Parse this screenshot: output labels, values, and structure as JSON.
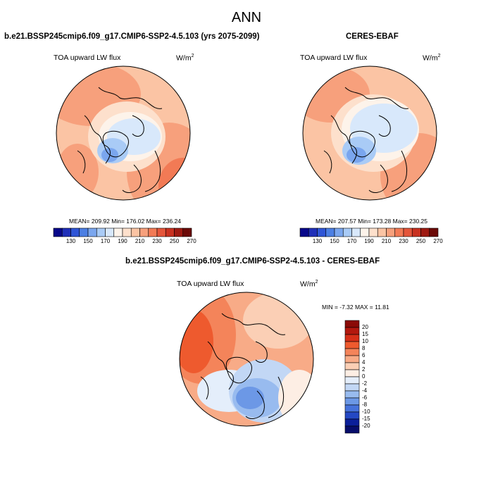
{
  "page": {
    "title": "ANN"
  },
  "panels": [
    {
      "id": "test",
      "case_title": "b.e21.BSSP245cmip6.f09_g17.CMIP6-SSP2-4.5.103 (yrs 2075-2099)",
      "variable": "TOA upward LW flux",
      "units_base": "W/m",
      "units_exp": "2",
      "stats": "MEAN= 209.92  Min= 176.02  Max= 236.24",
      "palette": "abs",
      "colorbar_labels": [
        "130",
        "150",
        "170",
        "190",
        "210",
        "230",
        "250",
        "270"
      ]
    },
    {
      "id": "ref",
      "case_title": "CERES-EBAF",
      "variable": "TOA upward LW flux",
      "units_base": "W/m",
      "units_exp": "2",
      "stats": "MEAN= 207.57  Min= 173.28  Max= 230.25",
      "palette": "abs",
      "colorbar_labels": [
        "130",
        "150",
        "170",
        "190",
        "210",
        "230",
        "250",
        "270"
      ]
    },
    {
      "id": "diff",
      "case_title": "b.e21.BSSP245cmip6.f09_g17.CMIP6-SSP2-4.5.103 - CERES-EBAF",
      "variable": "TOA upward LW flux",
      "units_base": "W/m",
      "units_exp": "2",
      "stats": "MIN = -7.32 MAX = 11.81",
      "palette": "diff",
      "colorbar_labels": [
        "20",
        "15",
        "10",
        "8",
        "6",
        "4",
        "2",
        "0",
        "-2",
        "-4",
        "-6",
        "-8",
        "-10",
        "-15",
        "-20"
      ]
    }
  ],
  "colors": {
    "abs_palette": [
      "#08088a",
      "#1f2fb8",
      "#2f55d6",
      "#4c7fe3",
      "#7aa6ee",
      "#a9cbf6",
      "#d8e8fb",
      "#fdf3ea",
      "#fde0cc",
      "#fbc4a4",
      "#f7a07c",
      "#f27a55",
      "#e4553a",
      "#c83120",
      "#9e1a12",
      "#6b0a08"
    ],
    "diff_palette": [
      "#8b0a06",
      "#b3180e",
      "#d62f18",
      "#ee5a2e",
      "#f4845a",
      "#f8ab87",
      "#fbcfb5",
      "#fdeee4",
      "#e4eefb",
      "#c2d7f5",
      "#98bbef",
      "#6c98e6",
      "#4672db",
      "#2448c4",
      "#0b1f9a",
      "#070d6b"
    ]
  }
}
